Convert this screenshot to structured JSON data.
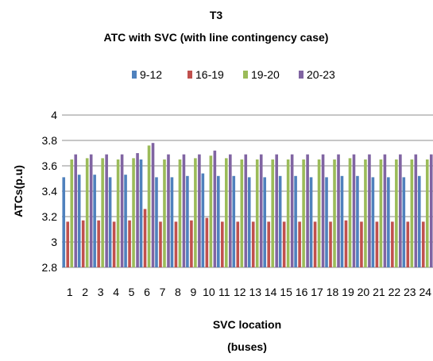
{
  "chart_data": {
    "type": "bar",
    "title": "T3",
    "subtitle": "ATC with SVC (with line contingency case)",
    "xlabel": "SVC location",
    "xlabel_line2": "(buses)",
    "ylabel": "ATCs(p.u)",
    "ylim": [
      2.8,
      4.0
    ],
    "ytick_step": 0.2,
    "yticks": [
      "2.8",
      "3",
      "3.2",
      "3.4",
      "3.6",
      "3.8",
      "4"
    ],
    "grid": true,
    "legend_position": "top",
    "categories": [
      "1",
      "2",
      "3",
      "4",
      "5",
      "6",
      "7",
      "8",
      "9",
      "10",
      "11",
      "12",
      "13",
      "14",
      "15",
      "16",
      "17",
      "18",
      "19",
      "20",
      "21",
      "22",
      "23",
      "24"
    ],
    "series": [
      {
        "name": "9-12",
        "color": "#4F81BD",
        "values": [
          3.51,
          3.53,
          3.53,
          3.51,
          3.53,
          3.65,
          3.51,
          3.51,
          3.52,
          3.54,
          3.52,
          3.52,
          3.51,
          3.51,
          3.52,
          3.52,
          3.51,
          3.51,
          3.52,
          3.52,
          3.51,
          3.51,
          3.51,
          3.52
        ]
      },
      {
        "name": "16-19",
        "color": "#C0504D",
        "values": [
          3.16,
          3.17,
          3.17,
          3.16,
          3.17,
          3.26,
          3.16,
          3.16,
          3.17,
          3.19,
          3.16,
          3.16,
          3.16,
          3.16,
          3.16,
          3.16,
          3.16,
          3.16,
          3.17,
          3.16,
          3.16,
          3.16,
          3.16,
          3.16
        ]
      },
      {
        "name": "19-20",
        "color": "#9BBB59",
        "values": [
          3.65,
          3.66,
          3.66,
          3.65,
          3.66,
          3.76,
          3.65,
          3.65,
          3.66,
          3.68,
          3.66,
          3.65,
          3.65,
          3.65,
          3.65,
          3.65,
          3.65,
          3.65,
          3.66,
          3.65,
          3.65,
          3.65,
          3.65,
          3.65
        ]
      },
      {
        "name": "20-23",
        "color": "#8064A2",
        "values": [
          3.69,
          3.69,
          3.69,
          3.69,
          3.7,
          3.78,
          3.69,
          3.69,
          3.69,
          3.72,
          3.69,
          3.69,
          3.69,
          3.69,
          3.69,
          3.69,
          3.69,
          3.69,
          3.69,
          3.69,
          3.69,
          3.69,
          3.69,
          3.69
        ]
      }
    ]
  }
}
